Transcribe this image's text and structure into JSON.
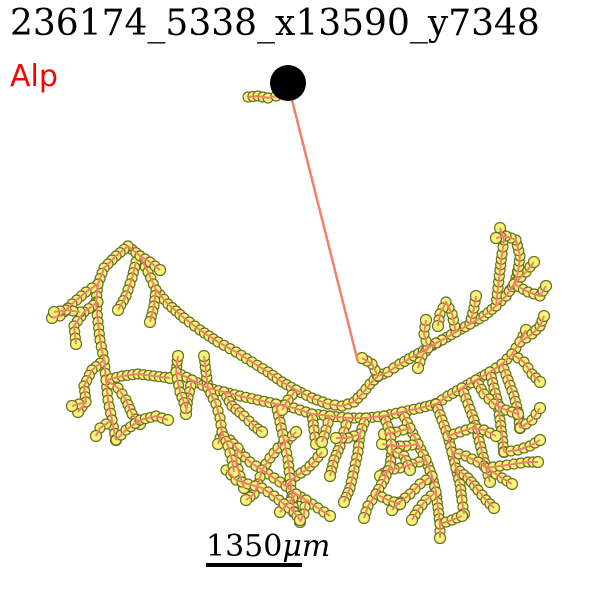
{
  "title": "236174_5338_x13590_y7348",
  "subtitle": "Alp",
  "scale_bar": {
    "label": "1350",
    "unit": "μm"
  },
  "colors": {
    "background": "#ffffff",
    "title_text": "#000000",
    "subtitle_text": "#ff0000",
    "node_fill": "#f5f575",
    "node_stroke": "#6b6b2a",
    "edge_stroke": "#f08070",
    "soma_fill": "#000000",
    "scale_bar": "#000000"
  }
}
